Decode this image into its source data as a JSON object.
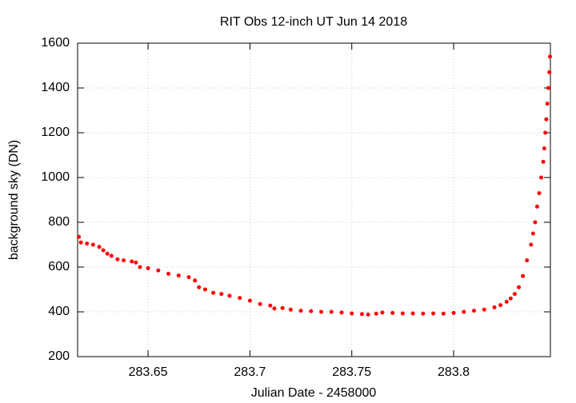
{
  "chart_data": {
    "type": "scatter",
    "title": "RIT Obs 12-inch UT Jun 14 2018",
    "x_label": "Julian Date - 2458000",
    "y_label": "background sky (DN)",
    "xlim": [
      283.6154,
      283.8475
    ],
    "ylim": [
      200,
      1600
    ],
    "xticks": [
      283.65,
      283.7,
      283.75,
      283.8
    ],
    "yticks": [
      200,
      400,
      600,
      800,
      1000,
      1200,
      1400,
      1600
    ],
    "grid": true,
    "color": "#ff0000",
    "x": [
      283.616,
      283.617,
      283.62,
      283.623,
      283.626,
      283.628,
      283.63,
      283.632,
      283.635,
      283.638,
      283.642,
      283.644,
      283.646,
      283.65,
      283.655,
      283.66,
      283.665,
      283.67,
      283.673,
      283.675,
      283.678,
      283.682,
      283.686,
      283.69,
      283.695,
      283.7,
      283.705,
      283.71,
      283.712,
      283.716,
      283.72,
      283.725,
      283.73,
      283.735,
      283.74,
      283.745,
      283.75,
      283.755,
      283.758,
      283.762,
      283.765,
      283.77,
      283.775,
      283.78,
      283.785,
      283.79,
      283.795,
      283.8,
      283.805,
      283.81,
      283.815,
      283.82,
      283.823,
      283.826,
      283.828,
      283.83,
      283.832,
      283.834,
      283.836,
      283.838,
      283.839,
      283.84,
      283.841,
      283.842,
      283.843,
      283.844,
      283.8445,
      283.845,
      283.8455,
      283.846,
      283.8465,
      283.847,
      283.8473
    ],
    "values": [
      735,
      710,
      705,
      700,
      690,
      675,
      660,
      650,
      635,
      630,
      625,
      620,
      600,
      595,
      585,
      570,
      562,
      555,
      540,
      510,
      500,
      485,
      480,
      472,
      462,
      450,
      435,
      428,
      415,
      417,
      410,
      405,
      403,
      400,
      400,
      397,
      393,
      390,
      388,
      392,
      397,
      395,
      393,
      393,
      392,
      393,
      392,
      395,
      400,
      405,
      410,
      420,
      430,
      445,
      460,
      480,
      510,
      560,
      630,
      700,
      750,
      800,
      870,
      930,
      1000,
      1070,
      1130,
      1200,
      1260,
      1330,
      1400,
      1470,
      1540
    ]
  }
}
